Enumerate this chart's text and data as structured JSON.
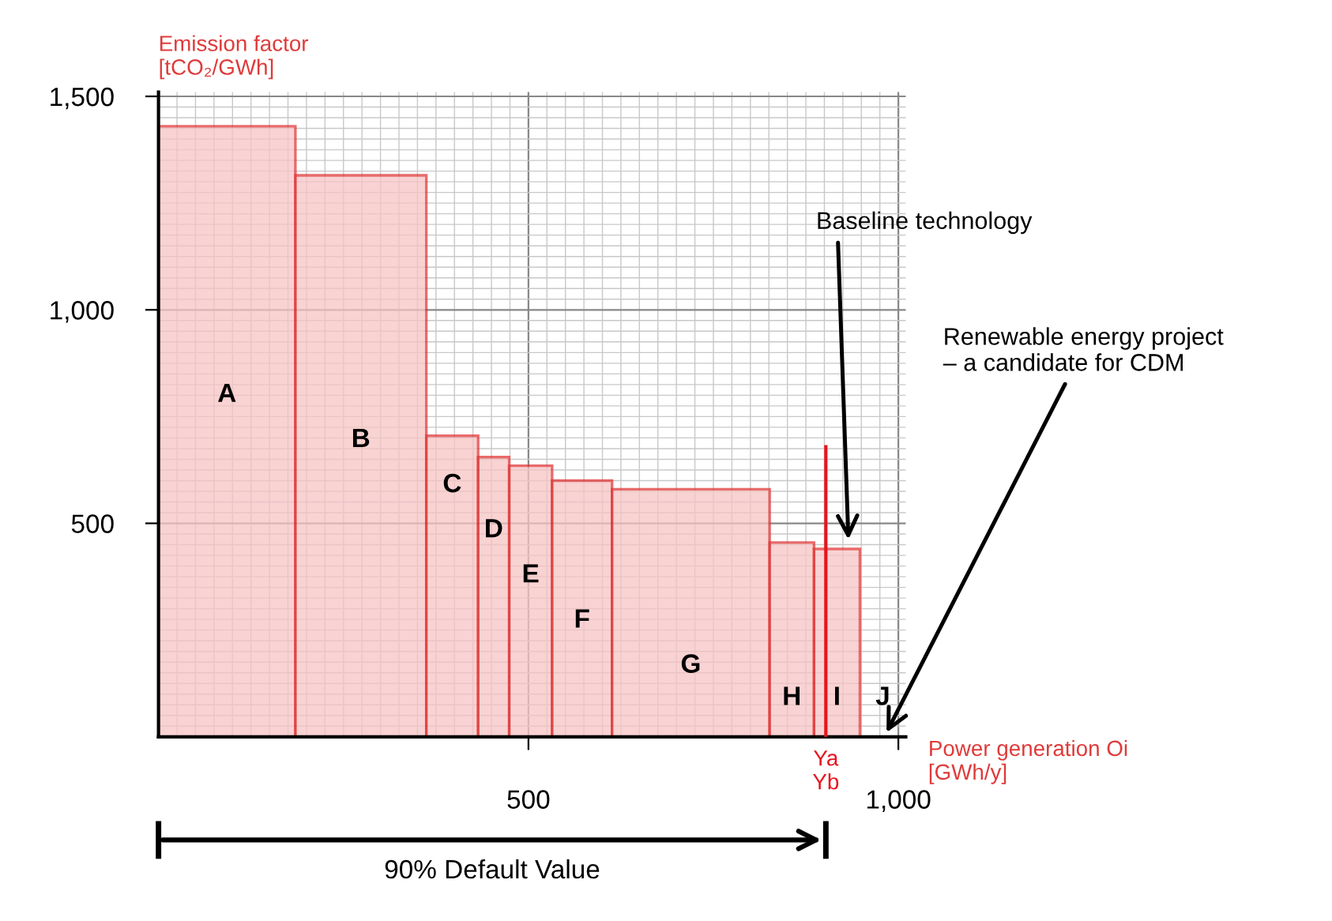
{
  "chart_data": {
    "type": "histogram",
    "xlabel": "Power generation Oi\n[GWh/y]",
    "ylabel": "Emission factor\n[tCO₂/GWh]",
    "categories": [
      "A",
      "B",
      "C",
      "D",
      "E",
      "F",
      "G",
      "H",
      "I",
      "J"
    ],
    "bins": [
      0,
      185,
      362,
      432,
      474,
      532,
      613,
      826,
      886,
      948
    ],
    "values": [
      1430,
      1315,
      705,
      655,
      635,
      600,
      580,
      455,
      440
    ],
    "color": "#f7c4c4",
    "xlim": [
      0,
      1010
    ],
    "ylim": [
      0,
      1510
    ],
    "xticks": [
      500,
      {
        "value": 1000,
        "label": "1,000"
      }
    ],
    "yticks": [
      500,
      {
        "value": 1000,
        "label": "1,000"
      },
      {
        "value": 1500,
        "label": "1,500"
      }
    ],
    "grid": true,
    "ref_lines": [
      {
        "axis": "x",
        "value": 902,
        "label": "Ya\nYb",
        "color": "#e8141e"
      }
    ],
    "annotations": [
      "Baseline technology",
      "Renewable energy project\n– a candidate for CDM",
      "90% Default Value"
    ]
  }
}
